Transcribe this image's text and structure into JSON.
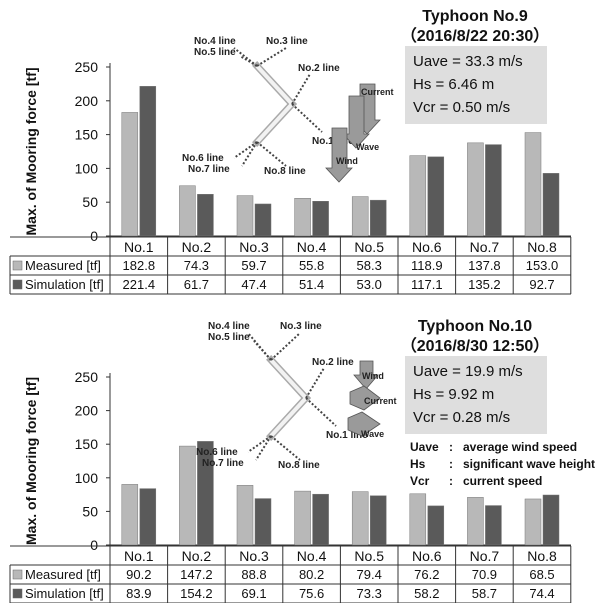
{
  "chart_data": [
    {
      "type": "bar",
      "title": "Typhoon No.9",
      "subtitle": "（2016/8/22 20:30）",
      "ylabel": "Max. of Mooring force [tf]",
      "ylim": [
        0,
        250
      ],
      "yticks": [
        "0",
        "50",
        "100",
        "150",
        "200",
        "250"
      ],
      "categories": [
        "No.1",
        "No.2",
        "No.3",
        "No.4",
        "No.5",
        "No.6",
        "No.7",
        "No.8"
      ],
      "series": [
        {
          "name": "Measured [tf]",
          "color": "#b8b8b8",
          "values": [
            182.8,
            74.3,
            59.7,
            55.8,
            58.3,
            118.9,
            137.8,
            153.0
          ],
          "labels": [
            "182.8",
            "74.3",
            "59.7",
            "55.8",
            "58.3",
            "118.9",
            "137.8",
            "153.0"
          ]
        },
        {
          "name": "Simulation [tf]",
          "color": "#5a5a5a",
          "values": [
            221.4,
            61.7,
            47.4,
            51.4,
            53.0,
            117.1,
            135.2,
            92.7
          ],
          "labels": [
            "221.4",
            "61.7",
            "47.4",
            "51.4",
            "53.0",
            "117.1",
            "135.2",
            "92.7"
          ]
        }
      ],
      "conditions": [
        "Uave = 33.3 m/s",
        "Hs = 6.46 m",
        "Vcr = 0.50 m/s"
      ],
      "line_labels": [
        "No.4 line",
        "No.5 line",
        "No.3 line",
        "No.2 line",
        "No.1 line",
        "No.6 line",
        "No.7 line",
        "No.8 line"
      ],
      "arrow_labels": [
        "Current",
        "Wave",
        "Wind"
      ],
      "glossary": []
    },
    {
      "type": "bar",
      "title": "Typhoon No.10",
      "subtitle": "（2016/8/30 12:50）",
      "ylabel": "Max. of Mooring force [tf]",
      "ylim": [
        0,
        250
      ],
      "yticks": [
        "0",
        "50",
        "100",
        "150",
        "200",
        "250"
      ],
      "categories": [
        "No.1",
        "No.2",
        "No.3",
        "No.4",
        "No.5",
        "No.6",
        "No.7",
        "No.8"
      ],
      "series": [
        {
          "name": "Measured [tf]",
          "color": "#b8b8b8",
          "values": [
            90.2,
            147.2,
            88.8,
            80.2,
            79.4,
            76.2,
            70.9,
            68.5
          ],
          "labels": [
            "90.2",
            "147.2",
            "88.8",
            "80.2",
            "79.4",
            "76.2",
            "70.9",
            "68.5"
          ]
        },
        {
          "name": "Simulation [tf]",
          "color": "#5a5a5a",
          "values": [
            83.9,
            154.2,
            69.1,
            75.6,
            73.3,
            58.2,
            58.7,
            74.4
          ],
          "labels": [
            "83.9",
            "154.2",
            "69.1",
            "75.6",
            "73.3",
            "58.2",
            "58.7",
            "74.4"
          ]
        }
      ],
      "conditions": [
        "Uave = 19.9 m/s",
        "Hs = 9.92 m",
        "Vcr = 0.28 m/s"
      ],
      "line_labels": [
        "No.4 line",
        "No.5 line",
        "No.3 line",
        "No.2 line",
        "No.1 line",
        "No.6 line",
        "No.7 line",
        "No.8 line"
      ],
      "arrow_labels": [
        "Wind",
        "Current",
        "Wave"
      ],
      "glossary": [
        {
          "term": "Uave",
          "sep": ":",
          "desc": "average wind speed"
        },
        {
          "term": "Hs",
          "sep": ":",
          "desc": "significant wave height"
        },
        {
          "term": "Vcr",
          "sep": ":",
          "desc": "current speed"
        }
      ]
    }
  ]
}
